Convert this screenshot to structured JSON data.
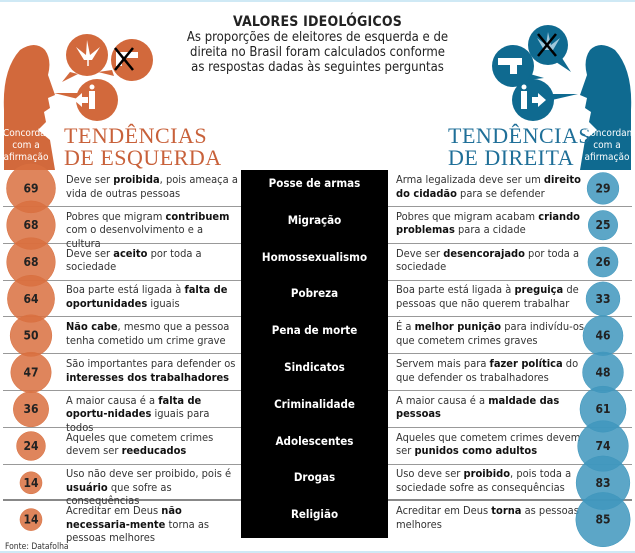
{
  "header": {
    "title": "VALORES IDEOLÓGICOS",
    "subtitle": "As proporções de eleitores de esquerda e de direita no Brasil foram calculados conforme as respostas dadas às seguintes perguntas"
  },
  "left": {
    "heading_line1": "TENDÊNCIAS",
    "heading_line2": "DE ESQUERDA",
    "agree_label": "Concordam com a afirmação",
    "icons": [
      "cannabis-leaf-icon",
      "crossed-gun-icon",
      "arrow-left-person-icon"
    ]
  },
  "right": {
    "heading_line1": "TENDÊNCIAS",
    "heading_line2": "DE DIREITA",
    "agree_label": "Concordam com a afirmação",
    "icons": [
      "gun-icon",
      "crossed-cannabis-leaf-icon",
      "person-arrow-right-icon"
    ]
  },
  "colors": {
    "left": "#d9703f",
    "left_dark": "#c8613a",
    "right": "#3f97bd",
    "right_dark": "#0f6a90",
    "topic_bg": "#000000"
  },
  "source": "Fonte: Datafolha",
  "chart_data": {
    "type": "bubble",
    "title": "VALORES IDEOLÓGICOS",
    "categories": [
      "Posse de armas",
      "Migração",
      "Homossexualismo",
      "Pobreza",
      "Pena de morte",
      "Sindicatos",
      "Criminalidade",
      "Adolescentes",
      "Drogas",
      "Religião"
    ],
    "series": [
      {
        "name": "TENDÊNCIAS DE ESQUERDA",
        "values": [
          69,
          68,
          68,
          64,
          50,
          47,
          36,
          24,
          14,
          14
        ]
      },
      {
        "name": "TENDÊNCIAS DE DIREITA",
        "values": [
          29,
          25,
          26,
          33,
          46,
          48,
          61,
          74,
          83,
          85
        ]
      }
    ],
    "left_statements": [
      [
        [
          "Deve ser ",
          0
        ],
        [
          "proibida",
          1
        ],
        [
          ", pois ameaça a vida de outras pessoas",
          0
        ]
      ],
      [
        [
          "Pobres que migram ",
          0
        ],
        [
          "contribuem",
          1
        ],
        [
          " com o desenvolvimento e a cultura",
          0
        ]
      ],
      [
        [
          "Deve ser ",
          0
        ],
        [
          "aceito",
          1
        ],
        [
          " por toda a sociedade",
          0
        ]
      ],
      [
        [
          "Boa parte está ligada à ",
          0
        ],
        [
          "falta de oportunidades",
          1
        ],
        [
          " iguais",
          0
        ]
      ],
      [
        [
          "Não cabe",
          1
        ],
        [
          ", mesmo que a pessoa tenha cometido um crime grave",
          0
        ]
      ],
      [
        [
          "São importantes para defender os ",
          0
        ],
        [
          "interesses dos trabalhadores",
          1
        ]
      ],
      [
        [
          "A maior causa é a ",
          0
        ],
        [
          "falta de oportu-nidades",
          1
        ],
        [
          " iguais para todos",
          0
        ]
      ],
      [
        [
          "Aqueles que cometem crimes devem ser ",
          0
        ],
        [
          "reeducados",
          1
        ]
      ],
      [
        [
          "Uso não deve ser proibido, pois é ",
          0
        ],
        [
          "usuário",
          1
        ],
        [
          " que sofre as consequências",
          0
        ]
      ],
      [
        [
          "Acreditar em Deus ",
          0
        ],
        [
          "não necessaria-mente",
          1
        ],
        [
          " torna as pessoas melhores",
          0
        ]
      ]
    ],
    "right_statements": [
      [
        [
          "Arma legalizada deve ser um ",
          0
        ],
        [
          "direito do cidadão",
          1
        ],
        [
          " para se defender",
          0
        ]
      ],
      [
        [
          "Pobres que migram acabam ",
          0
        ],
        [
          "criando problemas",
          1
        ],
        [
          " para a cidade",
          0
        ]
      ],
      [
        [
          "Deve ser ",
          0
        ],
        [
          "desencorajado",
          1
        ],
        [
          " por toda a sociedade",
          0
        ]
      ],
      [
        [
          "Boa parte está ligada à ",
          0
        ],
        [
          "preguiça",
          1
        ],
        [
          " de pessoas que não querem trabalhar",
          0
        ]
      ],
      [
        [
          "É a ",
          0
        ],
        [
          "melhor punição",
          1
        ],
        [
          " para indivídu-os que cometem crimes graves",
          0
        ]
      ],
      [
        [
          "Servem mais para ",
          0
        ],
        [
          "fazer política",
          1
        ],
        [
          " do que defender os trabalhadores",
          0
        ]
      ],
      [
        [
          "A maior causa é a ",
          0
        ],
        [
          "maldade das pessoas",
          1
        ]
      ],
      [
        [
          "Aqueles que cometem crimes devem ser ",
          0
        ],
        [
          "punidos como adultos",
          1
        ]
      ],
      [
        [
          "Uso deve ser ",
          0
        ],
        [
          "proibido",
          1
        ],
        [
          ", pois toda a sociedade sofre as consequências",
          0
        ]
      ],
      [
        [
          "Acreditar em Deus ",
          0
        ],
        [
          "torna",
          1
        ],
        [
          " as pessoas melhores",
          0
        ]
      ]
    ]
  }
}
